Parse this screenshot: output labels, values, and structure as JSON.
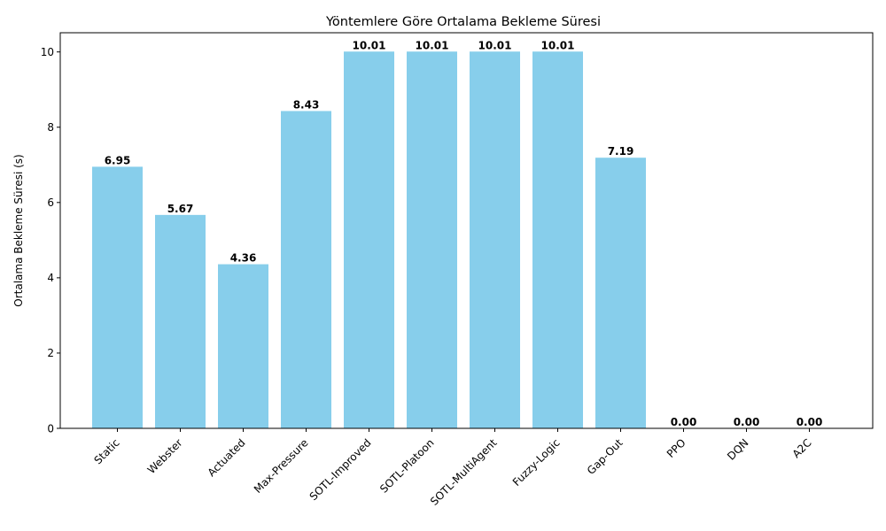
{
  "chart_data": {
    "type": "bar",
    "title": "Yöntemlere Göre Ortalama Bekleme Süresi",
    "xlabel": "",
    "ylabel": "Ortalama Bekleme Süresi (s)",
    "categories": [
      "Static",
      "Webster",
      "Actuated",
      "Max-Pressure",
      "SOTL-Improved",
      "SOTL-Platoon",
      "SOTL-MultiAgent",
      "Fuzzy-Logic",
      "Gap-Out",
      "PPO",
      "DQN",
      "A2C"
    ],
    "values": [
      6.95,
      5.67,
      4.36,
      8.43,
      10.01,
      10.01,
      10.01,
      10.01,
      7.19,
      0.0,
      0.0,
      0.0
    ],
    "data_labels": [
      "6.95",
      "5.67",
      "4.36",
      "8.43",
      "10.01",
      "10.01",
      "10.01",
      "10.01",
      "7.19",
      "0.00",
      "0.00",
      "0.00"
    ],
    "ylim": [
      0,
      10.51
    ],
    "yticks": [
      0,
      2,
      4,
      6,
      8,
      10
    ],
    "ytick_labels": [
      "0",
      "2",
      "4",
      "6",
      "8",
      "10"
    ],
    "xtick_rotation": 45,
    "bar_color": "#87ceeb",
    "grid": false,
    "legend": "none"
  }
}
